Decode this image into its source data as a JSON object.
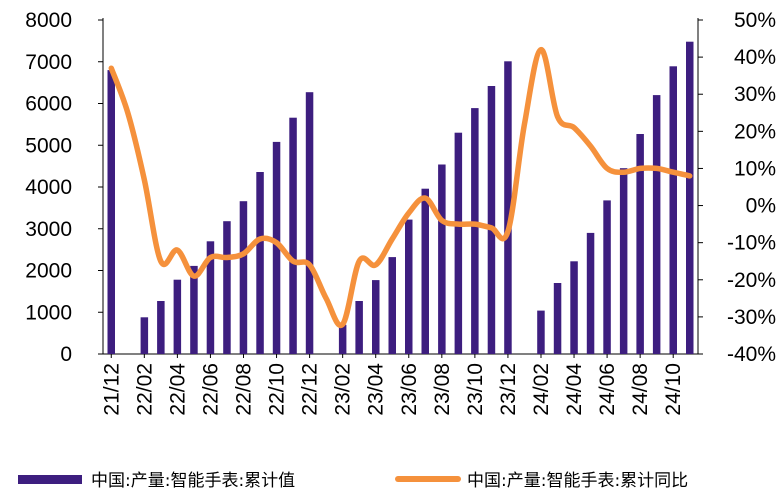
{
  "chart_data": {
    "type": "bar+line",
    "categories": [
      "21/12",
      "22/01",
      "22/02",
      "22/03",
      "22/04",
      "22/05",
      "22/06",
      "22/07",
      "22/08",
      "22/09",
      "22/10",
      "22/11",
      "22/12",
      "23/01",
      "23/02",
      "23/03",
      "23/04",
      "23/05",
      "23/06",
      "23/07",
      "23/08",
      "23/09",
      "23/10",
      "23/11",
      "23/12",
      "24/01",
      "24/02",
      "24/03",
      "24/04",
      "24/05",
      "24/06",
      "24/07",
      "24/08",
      "24/09",
      "24/10",
      "24/11"
    ],
    "x_tick_labels": [
      "21/12",
      "22/02",
      "22/04",
      "22/06",
      "22/08",
      "22/10",
      "22/12",
      "23/02",
      "23/04",
      "23/06",
      "23/08",
      "23/10",
      "23/12",
      "24/02",
      "24/04",
      "24/06",
      "24/08",
      "24/10"
    ],
    "left_axis": {
      "min": 0,
      "max": 8000,
      "ticks": [
        "0",
        "1000",
        "2000",
        "3000",
        "4000",
        "5000",
        "6000",
        "7000",
        "8000"
      ]
    },
    "right_axis": {
      "min": -40,
      "max": 50,
      "ticks": [
        "-40%",
        "-30%",
        "-20%",
        "-10%",
        "0%",
        "10%",
        "20%",
        "30%",
        "40%",
        "50%"
      ]
    },
    "series": [
      {
        "name": "中国:产量:智能手表:累计值",
        "type": "bar",
        "axis": "left",
        "color": "#3d1e7f",
        "values": [
          6800,
          null,
          880,
          1270,
          1780,
          2110,
          2700,
          3180,
          3660,
          4360,
          5080,
          5660,
          6270,
          null,
          700,
          1270,
          1770,
          2320,
          3220,
          3960,
          4540,
          5300,
          5890,
          6420,
          7010,
          null,
          1040,
          1700,
          2220,
          2900,
          3680,
          4450,
          5270,
          6200,
          6890,
          7480
        ]
      },
      {
        "name": "中国:产量:智能手表:累计同比",
        "type": "line",
        "axis": "right",
        "color": "#f5913c",
        "values": [
          37,
          25,
          7,
          -15,
          -12,
          -19,
          -14,
          -14,
          -13,
          -9,
          -10,
          -15,
          -16,
          -25,
          -32,
          -15,
          -16,
          -9,
          -2,
          2,
          -4,
          -5,
          -5,
          -6,
          -7,
          22,
          42,
          24,
          21,
          16,
          10,
          9,
          10,
          10,
          9,
          8
        ]
      }
    ],
    "legend_position": "bottom"
  }
}
